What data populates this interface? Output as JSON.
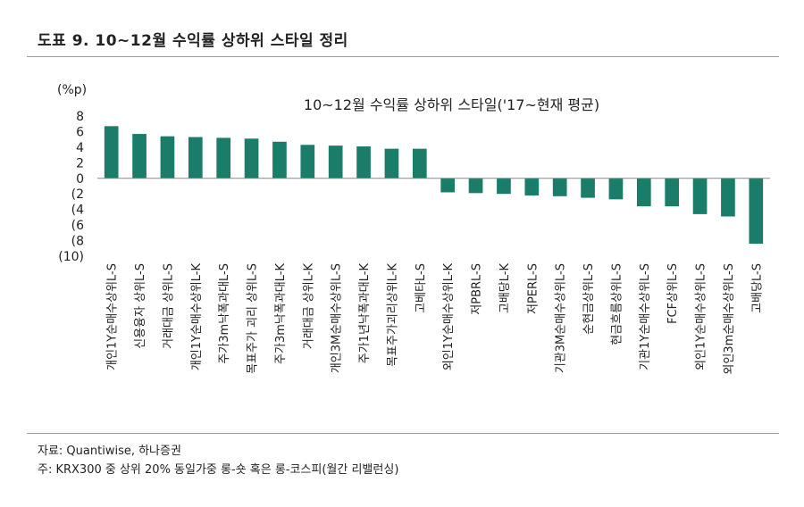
{
  "header": {
    "title": "도표 9. 10~12월 수익률 상하위 스타일 정리"
  },
  "footer": {
    "source": "자료: Quantiwise, 하나증권",
    "note": "주: KRX300 중 상위 20% 동일가중 롱-숏 혹은 롱-코스피(월간 리밸런싱)"
  },
  "colors": {
    "bar": "#1a7d6a"
  },
  "chart_data": {
    "type": "bar",
    "title": "10~12월 수익률 상하위 스타일('17~현재 평균)",
    "ylabel": "(%p)",
    "ylim": [
      -10,
      8
    ],
    "yticks": [
      8,
      6,
      4,
      2,
      0,
      -2,
      -4,
      -6,
      -8,
      -10
    ],
    "ytick_labels": [
      "8",
      "6",
      "4",
      "2",
      "0",
      "(2",
      "(4",
      "(6",
      "(8",
      "(10)"
    ],
    "grid": false,
    "legend": "none",
    "categories": [
      "개인1Y순매수상위L-S",
      "신용융자 상위L-S",
      "거래대금 상위L-S",
      "개인1Y순매수상위L-K",
      "주가3m낙폭과대L-S",
      "목표주가 괴리 상위L-S",
      "주가3m낙폭과대L-K",
      "거래대금 상위L-K",
      "개인3M순매수상위L-S",
      "주가1년낙폭과대L-K",
      "목표주가괴리상위L-K",
      "고베타L-S",
      "외인1Y순매수상위L-K",
      "저PBRL-S",
      "고배당L-K",
      "저PERL-S",
      "기관3M순매수상위L-S",
      "순현금상위L-S",
      "현금흐름상위L-S",
      "기관1Y순매수상위L-S",
      "FCF상위L-S",
      "외인1Y순매수상위L-S",
      "외인3m순매수상위L-S",
      "고배당L-S"
    ],
    "values": [
      6.7,
      5.7,
      5.4,
      5.3,
      5.2,
      5.1,
      4.7,
      4.3,
      4.2,
      4.1,
      3.8,
      3.8,
      -1.8,
      -1.9,
      -2.0,
      -2.2,
      -2.3,
      -2.5,
      -2.7,
      -3.6,
      -3.6,
      -4.6,
      -4.9,
      -8.4
    ]
  }
}
